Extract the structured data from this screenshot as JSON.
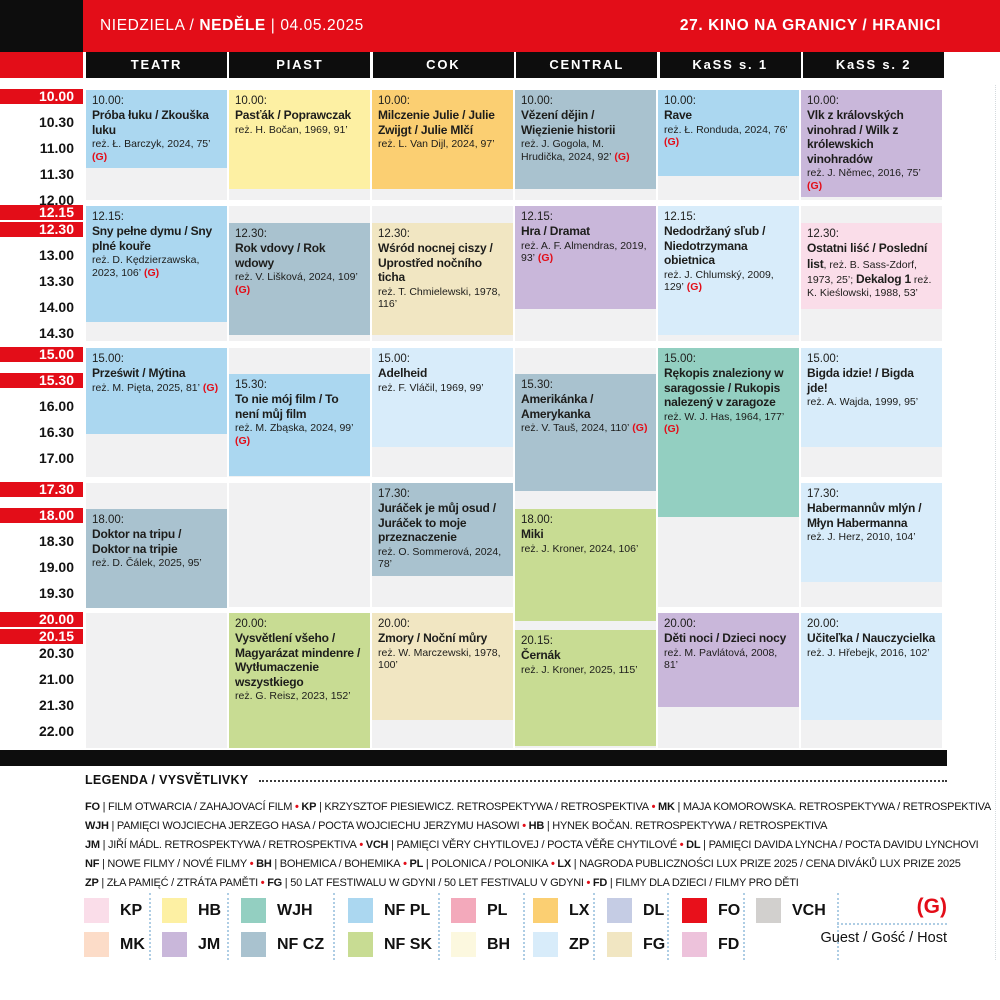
{
  "header": {
    "day_pl": "NIEDZIELA /",
    "day_cz": "NEDĚLE",
    "date": "| 04.05.2025",
    "festival": "27. KINO NA GRANICY / HRANICI"
  },
  "colors": {
    "accent_red": "#e30d18",
    "black": "#0d0d0d",
    "empty_cell": "#f1f1f2"
  },
  "venues": [
    "TEATR",
    "PIAST",
    "COK",
    "CENTRAL",
    "KaSS s. 1",
    "KaSS s. 2"
  ],
  "times": [
    {
      "t": "10.00",
      "red": true
    },
    {
      "t": "10.30",
      "red": false
    },
    {
      "t": "11.00",
      "red": false
    },
    {
      "t": "11.30",
      "red": false
    },
    {
      "t": "12.00",
      "red": false
    },
    {
      "t": "12.15",
      "red": true
    },
    {
      "t": "12.30",
      "red": true
    },
    {
      "t": "13.00",
      "red": false
    },
    {
      "t": "13.30",
      "red": false
    },
    {
      "t": "14.00",
      "red": false
    },
    {
      "t": "14.30",
      "red": false
    },
    {
      "t": "15.00",
      "red": true
    },
    {
      "t": "15.30",
      "red": true
    },
    {
      "t": "16.00",
      "red": false
    },
    {
      "t": "16.30",
      "red": false
    },
    {
      "t": "17.00",
      "red": false
    },
    {
      "t": "17.30",
      "red": true
    },
    {
      "t": "18.00",
      "red": true
    },
    {
      "t": "18.30",
      "red": false
    },
    {
      "t": "19.00",
      "red": false
    },
    {
      "t": "19.30",
      "red": false
    },
    {
      "t": "20.00",
      "red": true
    },
    {
      "t": "20.15",
      "red": true
    },
    {
      "t": "20.30",
      "red": false
    },
    {
      "t": "21.00",
      "red": false
    },
    {
      "t": "21.30",
      "red": false
    },
    {
      "t": "22.00",
      "red": false
    }
  ],
  "categories": {
    "KP": "#fadde9",
    "MK": "#fcdcc8",
    "HB": "#fdf0a3",
    "JM": "#c9b7da",
    "WJH": "#93cfc1",
    "NF CZ": "#a9c2cf",
    "NF PL": "#abd7f0",
    "NF SK": "#c8dc93",
    "PL": "#f3a9bb",
    "BH": "#fcf8df",
    "LX": "#fbcf72",
    "ZP": "#d8ecfa",
    "DL": "#c5cce4",
    "FG": "#f1e6c2",
    "FO": "#e8101b",
    "FD": "#edc2db",
    "VCH": "#d2d0ce"
  },
  "events": [
    {
      "venue": 0,
      "start": "10.00",
      "dur": 75,
      "cat": "NF PL",
      "title": "Próba łuku / Zkouška luku",
      "credits": "reż. Ł. Barczyk, 2024, 75’",
      "g": true
    },
    {
      "venue": 0,
      "start": "12.15",
      "dur": 106,
      "cat": "NF PL",
      "title": "Sny pełne dymu / Sny plné kouře",
      "credits": "reż. D. Kędzierzawska, 2023, 106’",
      "g": true
    },
    {
      "venue": 0,
      "start": "15.00",
      "dur": 81,
      "cat": "NF PL",
      "title": "Prześwit / Mýtina",
      "credits": "reż. M. Pięta, 2025, 81’",
      "g": true
    },
    {
      "venue": 0,
      "start": "18.00",
      "dur": 95,
      "cat": "NF CZ",
      "title": "Doktor na tripu / Doktor na tripie",
      "credits": "reż. D. Čálek, 2025, 95’",
      "g": false
    },
    {
      "venue": 1,
      "start": "10.00",
      "dur": 91,
      "cat": "HB",
      "title": "Pasťák / Poprawczak",
      "credits": "reż. H. Bočan, 1969, 91’",
      "g": false
    },
    {
      "venue": 1,
      "start": "12.30",
      "dur": 109,
      "cat": "NF CZ",
      "title": "Rok vdovy / Rok wdowy",
      "credits": "reż. V. Lišková, 2024, 109’",
      "g": true
    },
    {
      "venue": 1,
      "start": "15.30",
      "dur": 99,
      "cat": "NF PL",
      "title": "To nie mój film / To není můj film",
      "credits": "reż. M. Zbąska, 2024, 99’",
      "g": true
    },
    {
      "venue": 1,
      "start": "20.00",
      "dur": 152,
      "cat": "NF SK",
      "title": "Vysvětlení všeho / Magyarázat mindenre / Wytłumaczenie wszystkiego",
      "credits": "reż. G. Reisz, 2023, 152’",
      "g": false
    },
    {
      "venue": 2,
      "start": "10.00",
      "dur": 97,
      "cat": "LX",
      "title": "Milczenie Julie / Julie Zwijgt / Julie Mlčí",
      "credits": "reż. L. Van Dijl, 2024, 97’",
      "g": false
    },
    {
      "venue": 2,
      "start": "12.30",
      "dur": 116,
      "cat": "FG",
      "title": "Wśród nocnej ciszy / Uprostřed nočního ticha",
      "credits": "reż. T. Chmielewski, 1978, 116’",
      "g": false
    },
    {
      "venue": 2,
      "start": "15.00",
      "dur": 99,
      "cat": "ZP",
      "title": "Adelheid",
      "credits": "reż. F. Vláčil, 1969, 99’",
      "g": false
    },
    {
      "venue": 2,
      "start": "17.30",
      "dur": 78,
      "cat": "NF CZ",
      "title": "Juráček je můj osud / Juráček to moje przeznaczenie",
      "credits": "reż. O. Sommerová, 2024, 78’",
      "g": false
    },
    {
      "venue": 2,
      "start": "20.00",
      "dur": 100,
      "cat": "FG",
      "title": "Zmory / Noční můry",
      "credits": "reż. W. Marczewski, 1978, 100’",
      "g": false
    },
    {
      "venue": 3,
      "start": "10.00",
      "dur": 92,
      "cat": "NF CZ",
      "title": "Vězení dějin / Więzienie historii",
      "credits": "reż. J. Gogola, M. Hrudička, 2024, 92’",
      "g": true
    },
    {
      "venue": 3,
      "start": "12.15",
      "dur": 93,
      "cat": "JM",
      "title": "Hra / Dramat",
      "credits": "reż. A. F. Almendras, 2019, 93’",
      "g": true
    },
    {
      "venue": 3,
      "start": "15.30",
      "dur": 110,
      "cat": "NF CZ",
      "title": "Amerikánka / Amerykanka",
      "credits": "reż. V. Tauš, 2024, 110’",
      "g": true
    },
    {
      "venue": 3,
      "start": "18.00",
      "dur": 106,
      "cat": "NF SK",
      "title": "Miki",
      "credits": "reż. J. Kroner, 2024, 106’",
      "g": false
    },
    {
      "venue": 3,
      "start": "20.15",
      "dur": 115,
      "cat": "NF SK",
      "title": "Černák",
      "credits": "reż. J. Kroner, 2025, 115’",
      "g": false
    },
    {
      "venue": 4,
      "start": "10.00",
      "dur": 76,
      "cat": "NF PL",
      "title": "Rave",
      "credits": "reż. Ł. Ronduda, 2024, 76’",
      "g": true
    },
    {
      "venue": 4,
      "start": "12.15",
      "dur": 129,
      "cat": "ZP",
      "title": "Nedodržaný sľub / Niedotrzymana obietnica",
      "credits": "reż. J. Chlumský, 2009, 129’",
      "g": true
    },
    {
      "venue": 4,
      "start": "15.00",
      "dur": 177,
      "cat": "WJH",
      "title": "Rękopis znaleziony w saragossie / Rukopis nalezený v zaragoze",
      "credits": "reż. W. J. Has, 1964, 177’",
      "g": true
    },
    {
      "venue": 4,
      "start": "20.00",
      "dur": 81,
      "cat": "JM",
      "title": "Děti noci / Dzieci nocy",
      "credits": "reż. M. Pavlátová, 2008, 81’",
      "g": false
    },
    {
      "venue": 5,
      "start": "10.00",
      "dur": 75,
      "cat": "JM",
      "title": "Vlk z královských vinohrad / Wilk z królewskich vinohradów",
      "credits": "reż. J. Němec, 2016, 75’",
      "g": true
    },
    {
      "venue": 5,
      "start": "12.30",
      "dur": 78,
      "cat": "KP",
      "runs": [
        {
          "t": "Ostatni liść / Poslední list",
          "b": true
        },
        {
          "t": ", reż. B. Sass-Zdorf, 1973, 25’; ",
          "b": false
        },
        {
          "t": "Dekalog 1",
          "b": true
        },
        {
          "t": " reż. K. Kieślowski, 1988, 53’",
          "b": false
        }
      ]
    },
    {
      "venue": 5,
      "start": "15.00",
      "dur": 95,
      "cat": "ZP",
      "title": "Bigda idzie! / Bigda jde!",
      "credits": "reż. A. Wajda, 1999, 95’",
      "g": false
    },
    {
      "venue": 5,
      "start": "17.30",
      "dur": 104,
      "cat": "ZP",
      "title": "Habermannův mlýn / Młyn Habermanna",
      "credits": "reż. J. Herz, 2010, 104’",
      "g": false
    },
    {
      "venue": 5,
      "start": "20.00",
      "dur": 102,
      "cat": "ZP",
      "title": "Učiteľka / Nauczycielka",
      "credits": "reż. J. Hřebejk, 2016, 102’",
      "g": false
    }
  ],
  "legend": {
    "title": "LEGENDA / VYSVĚTLIVKY",
    "lines": [
      [
        {
          "tag": "FO",
          "text": "FILM OTWARCIA / ZAHAJOVACÍ FILM"
        },
        {
          "tag": "KP",
          "text": "KRZYSZTOF PIESIEWICZ. RETROSPEKTYWA / RETROSPEKTIVA"
        },
        {
          "tag": "MK",
          "text": "MAJA KOMOROWSKA. RETROSPEKTYWA / RETROSPEKTIVA"
        }
      ],
      [
        {
          "tag": "WJH",
          "text": "PAMIĘCI WOJCIECHA JERZEGO HASA / POCTA WOJCIECHU JERZYMU HASOWI"
        },
        {
          "tag": "HB",
          "text": "HYNEK BOČAN. RETROSPEKTYWA / RETROSPEKTIVA"
        }
      ],
      [
        {
          "tag": "JM",
          "text": "JIŘÍ MÁDL. RETROSPEKTYWA / RETROSPEKTIVA"
        },
        {
          "tag": "VCH",
          "text": "PAMIĘCI VĚRY CHYTILOVEJ / POCTA VĚŘE CHYTILOVÉ"
        },
        {
          "tag": "DL",
          "text": "PAMIĘCI DAVIDA LYNCHA / POCTA DAVIDU LYNCHOVI"
        }
      ],
      [
        {
          "tag": "NF",
          "text": "NOWE FILMY / NOVÉ FILMY"
        },
        {
          "tag": "BH",
          "text": "BOHEMICA / BOHEMIKA"
        },
        {
          "tag": "PL",
          "text": "POLONICA / POLONIKA"
        },
        {
          "tag": "LX",
          "text": "NAGRODA PUBLICZNOŚCI LUX PRIZE 2025 / CENA DIVÁKŮ LUX PRIZE 2025"
        }
      ],
      [
        {
          "tag": "ZP",
          "text": "ZŁA PAMIĘĆ / ZTRÁTA PAMĚTI"
        },
        {
          "tag": "FG",
          "text": "50 LAT FESTIWALU W GDYNI / 50 LET FESTIVALU V GDYNI"
        },
        {
          "tag": "FD",
          "text": "FILMY DLA DZIECI / FILMY PRO DĚTI"
        }
      ]
    ],
    "swatch_rows": [
      [
        "KP",
        "HB",
        "WJH",
        "NF PL",
        "PL",
        "LX",
        "DL",
        "FO",
        "VCH"
      ],
      [
        "MK",
        "JM",
        "NF CZ",
        "NF SK",
        "BH",
        "ZP",
        "FG",
        "FD"
      ]
    ],
    "g_label": "(G)",
    "g_text": "Guest / Gość / Host"
  }
}
